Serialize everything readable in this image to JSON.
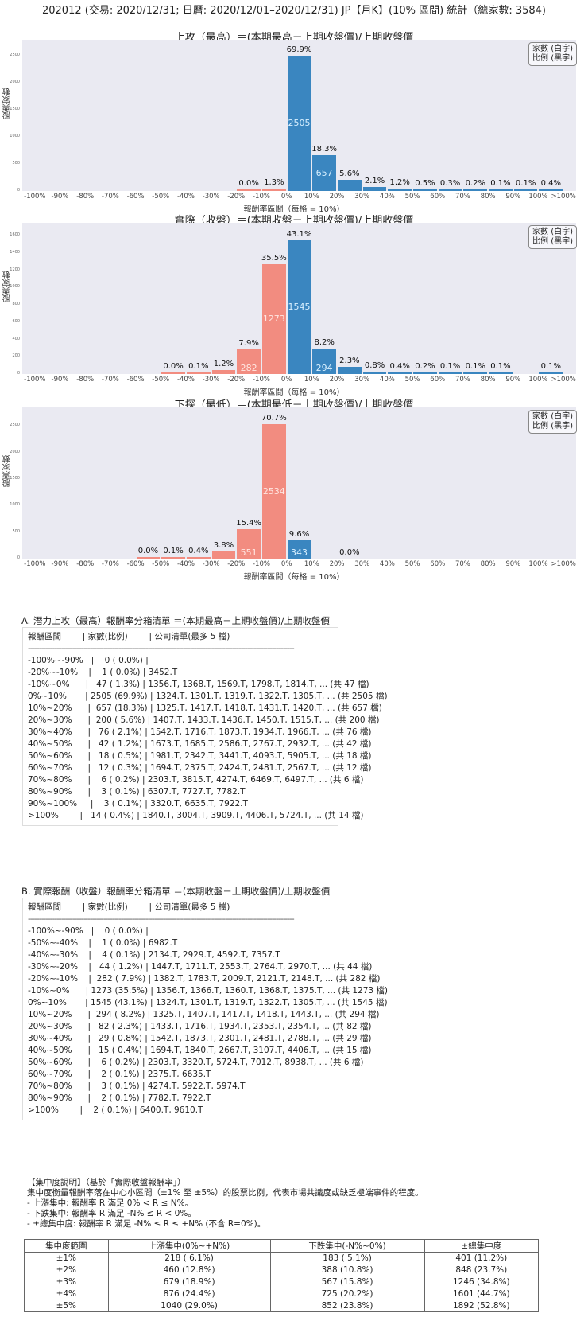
{
  "page": {
    "title": "202012 (交易: 2020/12/31; 日曆: 2020/12/01–2020/12/31) JP【月K】(10% 區間) 統計（總家數: 3584)"
  },
  "legend": {
    "line1": "家數 (白字)",
    "line2": "比例 (黑字)"
  },
  "xlabel": "報酬率區間（每格 = 10%）",
  "ylabel": "股票家數",
  "chart_data": [
    {
      "type": "bar",
      "title": "上攻（最高）＝(本期最高－上期收盤價)/上期收盤價",
      "xlabel": "報酬率區間（每格 = 10%）",
      "ylabel": "股票家數",
      "categories": [
        "-100%~-90%",
        "-90%~-80%",
        "-80%~-70%",
        "-70%~-60%",
        "-60%~-50%",
        "-50%~-40%",
        "-40%~-30%",
        "-30%~-20%",
        "-20%~-10%",
        "-10%~0%",
        "0%~10%",
        "10%~20%",
        "20%~30%",
        "30%~40%",
        "40%~50%",
        "50%~60%",
        "60%~70%",
        "70%~80%",
        "80%~90%",
        "90%~100%",
        ">100%"
      ],
      "counts": [
        0,
        null,
        null,
        null,
        null,
        null,
        null,
        null,
        1,
        47,
        2505,
        657,
        200,
        76,
        42,
        18,
        12,
        6,
        3,
        3,
        14
      ],
      "percents": [
        "",
        "",
        "",
        "",
        "",
        "",
        "",
        "",
        "0.0%",
        "1.3%",
        "69.9%",
        "18.3%",
        "5.6%",
        "2.1%",
        "1.2%",
        "0.5%",
        "0.3%",
        "0.2%",
        "0.1%",
        "0.1%",
        "0.4%"
      ],
      "yticks": [
        0,
        500,
        1000,
        1500,
        2000,
        2500
      ],
      "ylim": [
        0,
        2800
      ],
      "xticks": [
        "-100%",
        "-90%",
        "-80%",
        "-70%",
        "-60%",
        "-50%",
        "-40%",
        "-30%",
        "-20%",
        "-10%",
        "0%",
        "10%",
        "20%",
        "30%",
        "40%",
        "50%",
        "60%",
        "70%",
        "80%",
        "90%",
        "100%",
        ">100%"
      ],
      "colors": {
        "negative": "#f28c80",
        "positive": "#3a86c0"
      },
      "legend": [
        "家數 (白字)",
        "比例 (黑字)"
      ],
      "legend_position": "upper right"
    },
    {
      "type": "bar",
      "title": "實際（收盤）＝(本期收盤－上期收盤價)/上期收盤價",
      "xlabel": "報酬率區間（每格 = 10%）",
      "ylabel": "股票家數",
      "categories": [
        "-100%~-90%",
        "-90%~-80%",
        "-80%~-70%",
        "-70%~-60%",
        "-60%~-50%",
        "-50%~-40%",
        "-40%~-30%",
        "-30%~-20%",
        "-20%~-10%",
        "-10%~0%",
        "0%~10%",
        "10%~20%",
        "20%~30%",
        "30%~40%",
        "40%~50%",
        "50%~60%",
        "60%~70%",
        "70%~80%",
        "80%~90%",
        "90%~100%",
        ">100%"
      ],
      "counts": [
        0,
        null,
        null,
        null,
        null,
        1,
        4,
        44,
        282,
        1273,
        1545,
        294,
        82,
        29,
        15,
        6,
        2,
        3,
        2,
        null,
        2
      ],
      "percents": [
        "",
        "",
        "",
        "",
        "",
        "0.0%",
        "0.1%",
        "1.2%",
        "7.9%",
        "35.5%",
        "43.1%",
        "8.2%",
        "2.3%",
        "0.8%",
        "0.4%",
        "0.2%",
        "0.1%",
        "0.1%",
        "0.1%",
        "",
        "0.1%"
      ],
      "yticks": [
        0,
        200,
        400,
        600,
        800,
        1000,
        1200,
        1400,
        1600
      ],
      "ylim": [
        0,
        1750
      ],
      "colors": {
        "negative": "#f28c80",
        "positive": "#3a86c0"
      },
      "legend": [
        "家數 (白字)",
        "比例 (黑字)"
      ],
      "legend_position": "upper right"
    },
    {
      "type": "bar",
      "title": "下探（最低）＝(本期最低－上期收盤價)/上期收盤價",
      "xlabel": "報酬率區間（每格 = 10%）",
      "ylabel": "股票家數",
      "categories": [
        "-100%~-90%",
        "-90%~-80%",
        "-80%~-70%",
        "-70%~-60%",
        "-60%~-50%",
        "-50%~-40%",
        "-40%~-30%",
        "-30%~-20%",
        "-20%~-10%",
        "-10%~0%",
        "0%~10%",
        "10%~20%",
        "20%~30%"
      ],
      "counts": [
        null,
        null,
        null,
        null,
        1,
        4,
        14,
        136,
        551,
        2534,
        343,
        null,
        0
      ],
      "percents": [
        "",
        "",
        "",
        "",
        "0.0%",
        "0.1%",
        "0.4%",
        "3.8%",
        "15.4%",
        "70.7%",
        "9.6%",
        "",
        "0.0%"
      ],
      "yticks": [
        0,
        500,
        1000,
        1500,
        2000,
        2500
      ],
      "ylim": [
        0,
        2850
      ],
      "colors": {
        "negative": "#f28c80",
        "positive": "#3a86c0"
      },
      "legend": [
        "家數 (白字)",
        "比例 (黑字)"
      ],
      "legend_position": "upper right"
    }
  ],
  "section_a": {
    "title": "A. 潛力上攻（最高）報酬率分箱清單 ＝(本期最高－上期收盤價)/上期收盤價",
    "header": "報酬區間        | 家數(比例)        | 公司清單(最多 5 檔)",
    "dashes": "------------------------------------------------------------------------------------------------------------------------",
    "rows": [
      "-100%~-90%   |    0 ( 0.0%) |",
      "-20%~-10%    |    1 ( 0.0%) | 3452.T",
      "-10%~0%      |   47 ( 1.3%) | 1356.T, 1368.T, 1569.T, 1798.T, 1814.T, ... (共 47 檔)",
      "0%~10%       | 2505 (69.9%) | 1324.T, 1301.T, 1319.T, 1322.T, 1305.T, ... (共 2505 檔)",
      "10%~20%      |  657 (18.3%) | 1325.T, 1417.T, 1418.T, 1431.T, 1420.T, ... (共 657 檔)",
      "20%~30%      |  200 ( 5.6%) | 1407.T, 1433.T, 1436.T, 1450.T, 1515.T, ... (共 200 檔)",
      "30%~40%      |   76 ( 2.1%) | 1542.T, 1716.T, 1873.T, 1934.T, 1966.T, ... (共 76 檔)",
      "40%~50%      |   42 ( 1.2%) | 1673.T, 1685.T, 2586.T, 2767.T, 2932.T, ... (共 42 檔)",
      "50%~60%      |   18 ( 0.5%) | 1981.T, 2342.T, 3441.T, 4093.T, 5905.T, ... (共 18 檔)",
      "60%~70%      |   12 ( 0.3%) | 1694.T, 2375.T, 2424.T, 2481.T, 2567.T, ... (共 12 檔)",
      "70%~80%      |    6 ( 0.2%) | 2303.T, 3815.T, 4274.T, 6469.T, 6497.T, ... (共 6 檔)",
      "80%~90%      |    3 ( 0.1%) | 6307.T, 7727.T, 7782.T",
      "90%~100%     |    3 ( 0.1%) | 3320.T, 6635.T, 7922.T",
      ">100%        |   14 ( 0.4%) | 1840.T, 3004.T, 3909.T, 4406.T, 5724.T, ... (共 14 檔)"
    ]
  },
  "section_b": {
    "title": "B. 實際報酬（收盤）報酬率分箱清單 ＝(本期收盤－上期收盤價)/上期收盤價",
    "header": "報酬區間        | 家數(比例)        | 公司清單(最多 5 檔)",
    "dashes": "------------------------------------------------------------------------------------------------------------------------",
    "rows": [
      "-100%~-90%   |    0 ( 0.0%) |",
      "-50%~-40%    |    1 ( 0.0%) | 6982.T",
      "-40%~-30%    |    4 ( 0.1%) | 2134.T, 2929.T, 4592.T, 7357.T",
      "-30%~-20%    |   44 ( 1.2%) | 1447.T, 1711.T, 2553.T, 2764.T, 2970.T, ... (共 44 檔)",
      "-20%~-10%    |  282 ( 7.9%) | 1382.T, 1783.T, 2009.T, 2121.T, 2148.T, ... (共 282 檔)",
      "-10%~0%      | 1273 (35.5%) | 1356.T, 1366.T, 1360.T, 1368.T, 1375.T, ... (共 1273 檔)",
      "0%~10%       | 1545 (43.1%) | 1324.T, 1301.T, 1319.T, 1322.T, 1305.T, ... (共 1545 檔)",
      "10%~20%      |  294 ( 8.2%) | 1325.T, 1407.T, 1417.T, 1418.T, 1443.T, ... (共 294 檔)",
      "20%~30%      |   82 ( 2.3%) | 1433.T, 1716.T, 1934.T, 2353.T, 2354.T, ... (共 82 檔)",
      "30%~40%      |   29 ( 0.8%) | 1542.T, 1873.T, 2301.T, 2481.T, 2788.T, ... (共 29 檔)",
      "40%~50%      |   15 ( 0.4%) | 1694.T, 1840.T, 2667.T, 3107.T, 4406.T, ... (共 15 檔)",
      "50%~60%      |    6 ( 0.2%) | 2303.T, 3320.T, 5724.T, 7012.T, 8938.T, ... (共 6 檔)",
      "60%~70%      |    2 ( 0.1%) | 2375.T, 6635.T",
      "70%~80%      |    3 ( 0.1%) | 4274.T, 5922.T, 5974.T",
      "80%~90%      |    2 ( 0.1%) | 7782.T, 7922.T",
      ">100%        |    2 ( 0.1%) | 6400.T, 9610.T"
    ]
  },
  "concentration": {
    "notes": [
      "【集中度說明】（基於「實際收盤報酬率」）",
      "集中度衡量報酬率落在中心小區間（±1% 至 ±5%）的股票比例，代表市場共識度或缺乏極端事件的程度。",
      " - 上漲集中: 報酬率 R 滿足 0% < R ≤ N%。",
      " - 下跌集中: 報酬率 R 滿足 -N% ≤ R < 0%。",
      " - ±總集中度: 報酬率 R 滿足 -N% ≤ R ≤ +N% (不含 R=0%)。"
    ],
    "headers": [
      "集中度範圍",
      "上漲集中(0%~+N%)",
      "下跌集中(-N%~0%)",
      "±總集中度"
    ],
    "rows": [
      [
        "±1%",
        "218 ( 6.1%)",
        "183 ( 5.1%)",
        "401 (11.2%)"
      ],
      [
        "±2%",
        "460 (12.8%)",
        "388 (10.8%)",
        "848 (23.7%)"
      ],
      [
        "±3%",
        "679 (18.9%)",
        "567 (15.8%)",
        "1246 (34.8%)"
      ],
      [
        "±4%",
        "876 (24.4%)",
        "725 (20.2%)",
        "1601 (44.7%)"
      ],
      [
        "±5%",
        "1040 (29.0%)",
        "852 (23.8%)",
        "1892 (52.8%)"
      ]
    ]
  }
}
